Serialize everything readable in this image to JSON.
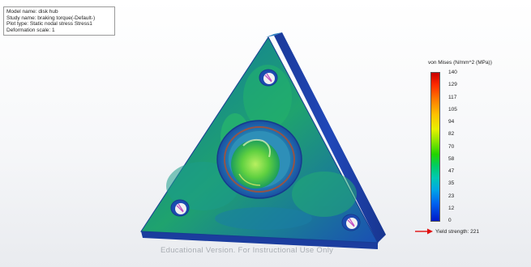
{
  "info": {
    "model_name": "Model name: disk hub",
    "study_name": "Study name: braking torque(-Default-)",
    "plot_type": "Plot type: Static nodal stress Stress1",
    "deformation_scale": "Deformation scale: 1"
  },
  "legend": {
    "title": "von Mises (N/mm^2 (MPa))",
    "ticks": [
      "140",
      "129",
      "117",
      "105",
      "94",
      "82",
      "70",
      "58",
      "47",
      "35",
      "23",
      "12",
      "0"
    ],
    "max_color": "#c80000",
    "min_color": "#0018c8"
  },
  "yield": {
    "label": "Yield strength: 221",
    "arrow_color": "#e01010"
  },
  "watermark": "Educational Version. For Instructional Use Only",
  "model": {
    "name": "disk-hub-triangle-plate",
    "body_color": "#1d9a73",
    "edge_color": "#1a3fa8"
  }
}
